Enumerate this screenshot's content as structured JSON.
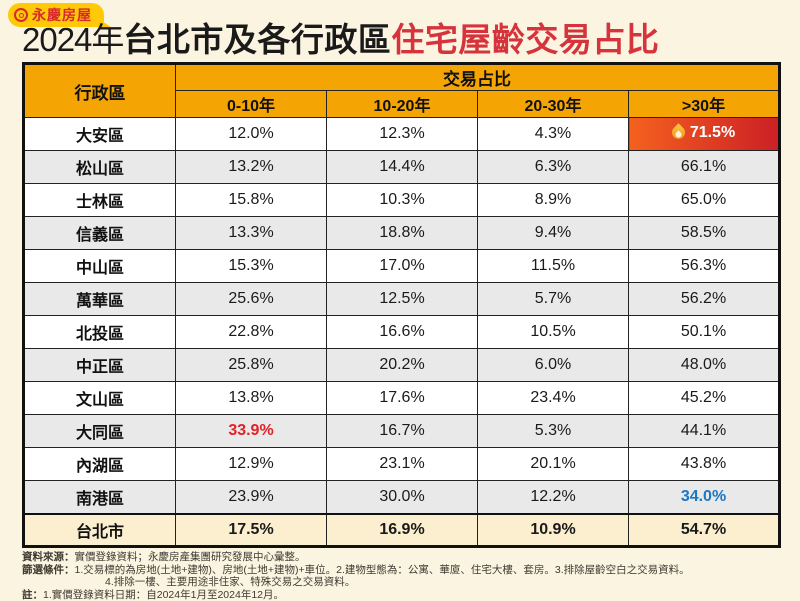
{
  "logo": {
    "text": "永慶房屋",
    "icon": "double-ring-icon"
  },
  "title": {
    "prefix": "2024年",
    "middle": "台北市及各行政區",
    "accent": "住宅屋齡交易占比"
  },
  "chart_data": {
    "type": "table",
    "title": "2024年台北市及各行政區住宅屋齡交易占比",
    "corner_label": "行政區",
    "group_label": "交易占比",
    "columns": [
      "0-10年",
      "10-20年",
      "20-30年",
      ">30年"
    ],
    "rows": [
      {
        "district": "大安區",
        "values": [
          "12.0%",
          "12.3%",
          "4.3%",
          "71.5%"
        ],
        "special": {
          "col": 3,
          "type": "fire",
          "icon": "flame-icon"
        }
      },
      {
        "district": "松山區",
        "values": [
          "13.2%",
          "14.4%",
          "6.3%",
          "66.1%"
        ]
      },
      {
        "district": "士林區",
        "values": [
          "15.8%",
          "10.3%",
          "8.9%",
          "65.0%"
        ]
      },
      {
        "district": "信義區",
        "values": [
          "13.3%",
          "18.8%",
          "9.4%",
          "58.5%"
        ]
      },
      {
        "district": "中山區",
        "values": [
          "15.3%",
          "17.0%",
          "11.5%",
          "56.3%"
        ]
      },
      {
        "district": "萬華區",
        "values": [
          "25.6%",
          "12.5%",
          "5.7%",
          "56.2%"
        ]
      },
      {
        "district": "北投區",
        "values": [
          "22.8%",
          "16.6%",
          "10.5%",
          "50.1%"
        ]
      },
      {
        "district": "中正區",
        "values": [
          "25.8%",
          "20.2%",
          "6.0%",
          "48.0%"
        ]
      },
      {
        "district": "文山區",
        "values": [
          "13.8%",
          "17.6%",
          "23.4%",
          "45.2%"
        ]
      },
      {
        "district": "大同區",
        "values": [
          "33.9%",
          "16.7%",
          "5.3%",
          "44.1%"
        ],
        "special": {
          "col": 0,
          "type": "red"
        }
      },
      {
        "district": "內湖區",
        "values": [
          "12.9%",
          "23.1%",
          "20.1%",
          "43.8%"
        ]
      },
      {
        "district": "南港區",
        "values": [
          "23.9%",
          "30.0%",
          "12.2%",
          "34.0%"
        ],
        "special": {
          "col": 3,
          "type": "blue"
        }
      },
      {
        "district": "台北市",
        "values": [
          "17.5%",
          "16.9%",
          "10.9%",
          "54.7%"
        ],
        "total": true
      }
    ]
  },
  "footnotes": [
    {
      "label": "資料來源：",
      "text": "實價登錄資料；永慶房產集團研究發展中心彙整。",
      "indent": false
    },
    {
      "label": "篩選條件：",
      "text": "1.交易標的為房地(土地+建物)、房地(土地+建物)+車位。2.建物型態為：公寓、華廈、住宅大樓、套房。3.排除屋齡空白之交易資料。",
      "indent": false
    },
    {
      "label": "",
      "text": "4.排除一樓、主要用途非住家、特殊交易之交易資料。",
      "indent": true
    },
    {
      "label": "註：",
      "text": "1.實價登錄資料日期：自2024年1月至2024年12月。",
      "indent": false
    }
  ],
  "colors": {
    "background": "#FBF4E0",
    "header_orange": "#F5A503",
    "brand_yellow": "#FFC907",
    "brand_red": "#D7282E",
    "title_accent_red": "#D6343C",
    "fire_gradient_start": "#F4611E",
    "fire_gradient_end": "#CC2026",
    "red_value": "#E02227",
    "blue_value": "#1B76C4",
    "row_gray": "#E9E9E9",
    "total_row_bg": "#FCEFCF"
  }
}
